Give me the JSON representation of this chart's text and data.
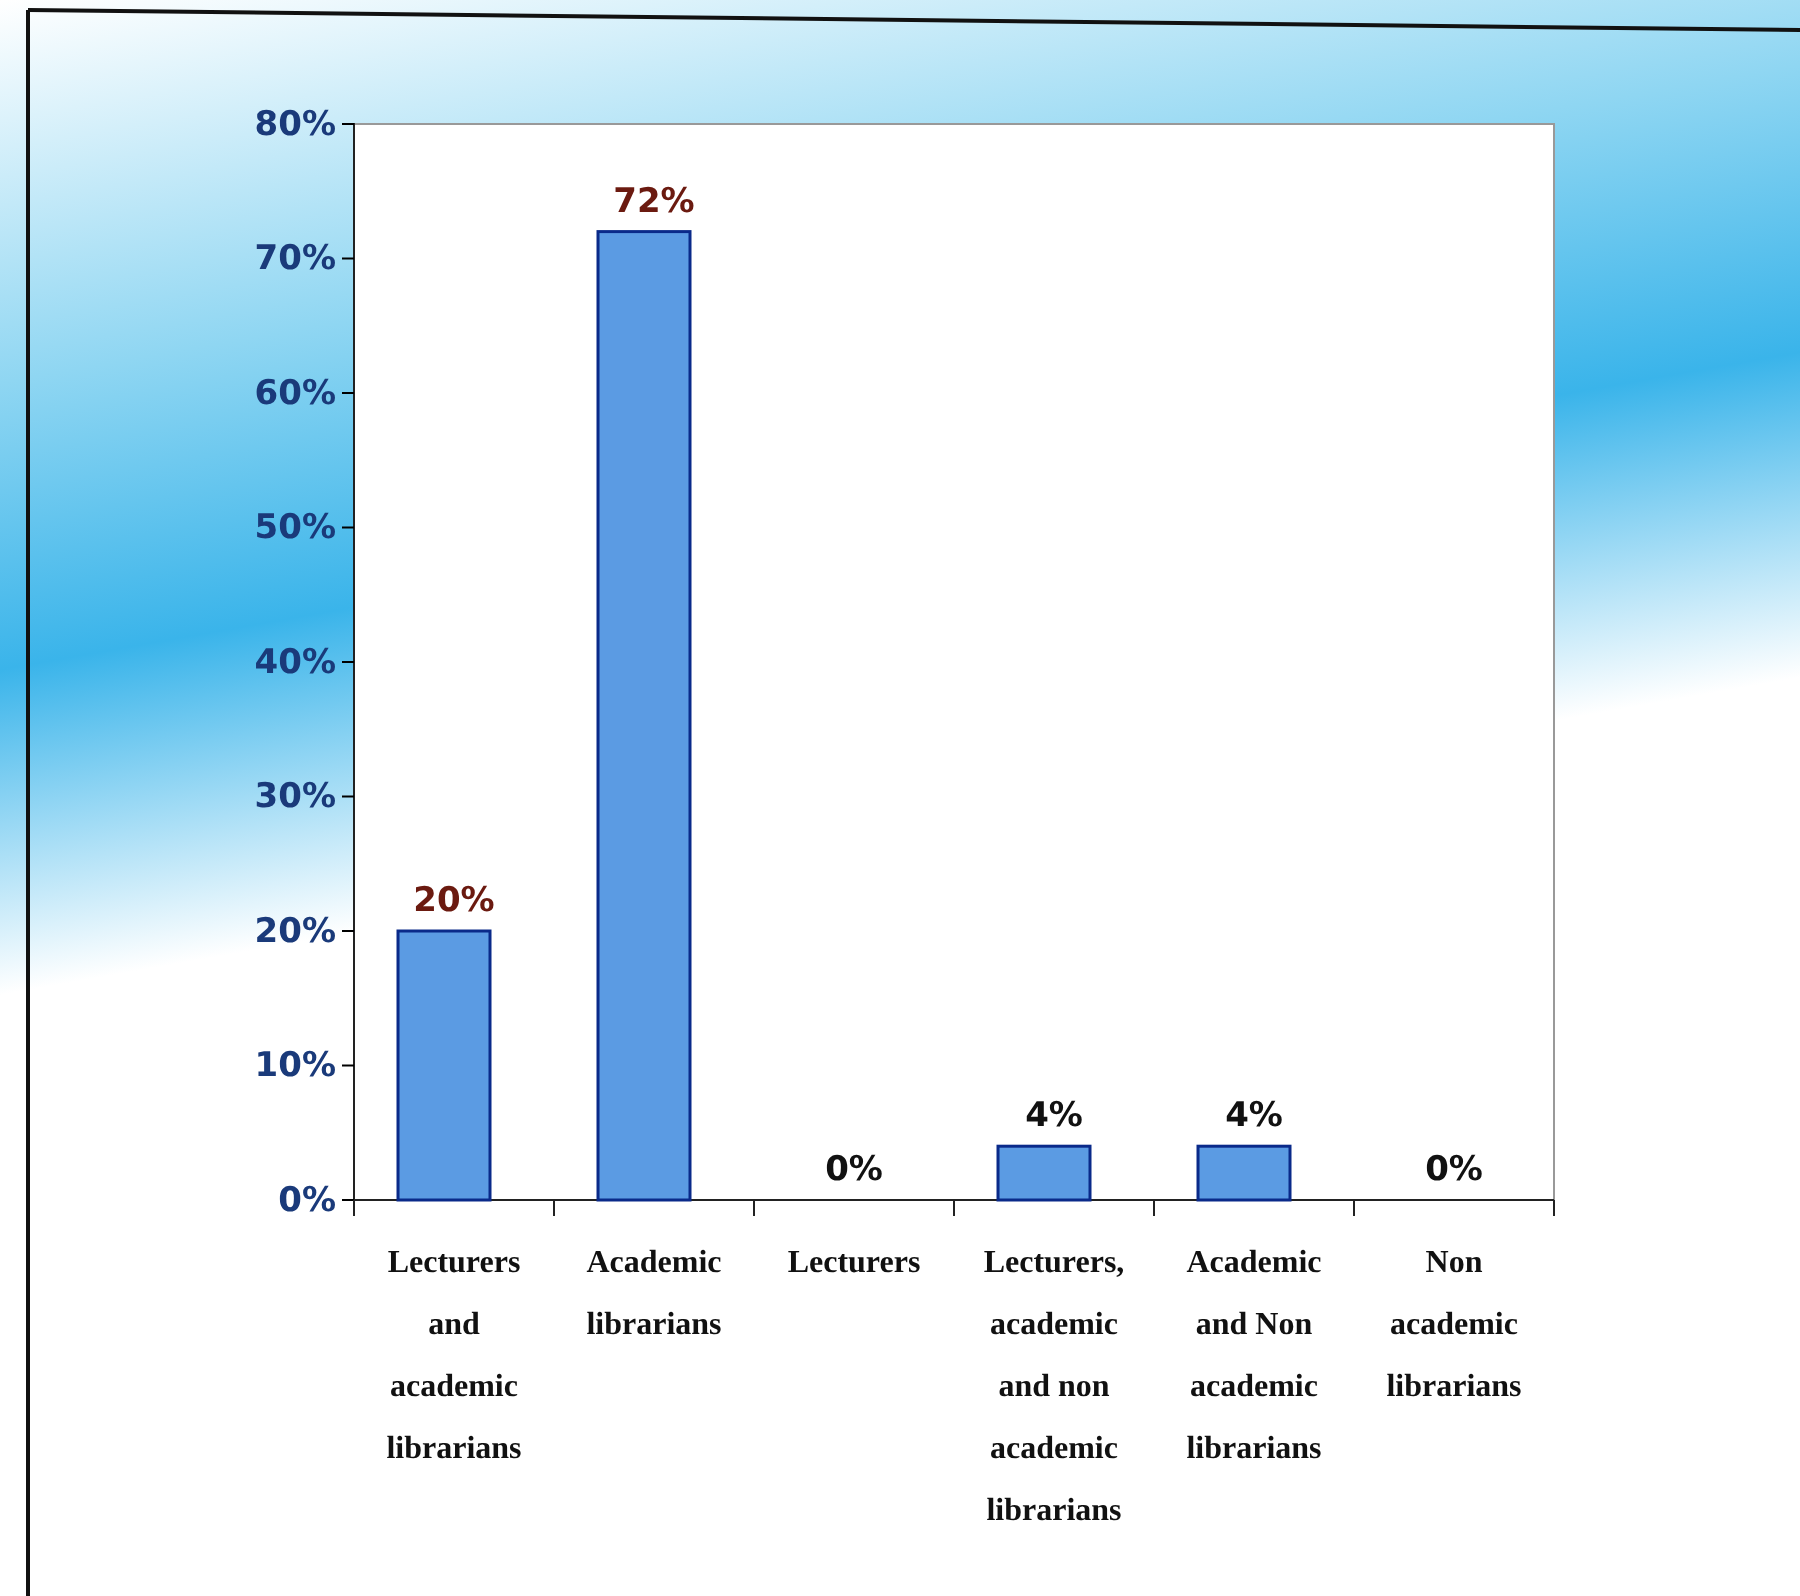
{
  "chart_data": {
    "type": "bar",
    "categories": [
      "Lecturers and academic librarians",
      "Academic librarians",
      "Lecturers",
      "Lecturers, academic and non academic librarians",
      "Academic and Non academic librarians",
      "Non academic librarians"
    ],
    "values": [
      20,
      72,
      0,
      4,
      4,
      0
    ],
    "color": "#5b9be3",
    "value_labels": [
      "20%",
      "72%",
      "0%",
      "4%",
      "4%",
      "0%"
    ],
    "ylim": [
      0,
      80
    ],
    "yticks": [
      {
        "value": 0,
        "label": "0%"
      },
      {
        "value": 10,
        "label": "10%"
      },
      {
        "value": 20,
        "label": "20%"
      },
      {
        "value": 30,
        "label": "30%"
      },
      {
        "value": 40,
        "label": "40%"
      },
      {
        "value": 50,
        "label": "50%"
      },
      {
        "value": 60,
        "label": "60%"
      },
      {
        "value": 70,
        "label": "70%"
      },
      {
        "value": 80,
        "label": "80%"
      }
    ],
    "grid": false
  }
}
